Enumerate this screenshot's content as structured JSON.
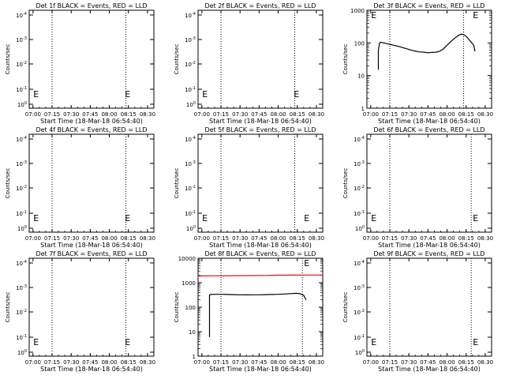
{
  "start_time_label": "Start Time (18-Mar-18 06:54:40)",
  "ylabel": "Counts/sec",
  "time_ticks": [
    "07:00",
    "07:15",
    "07:30",
    "07:45",
    "08:00",
    "08:15",
    "08:30"
  ],
  "colors": {
    "events": "#000000",
    "lld": "#ff0000"
  },
  "marker_labels": {
    "start": "E",
    "end": "E"
  },
  "chart_data": [
    {
      "type": "line",
      "title": "Det 1f BLACK = Events, RED = LLD",
      "x_unit": "minutes after 07:00",
      "xlim": [
        -3,
        95
      ],
      "xlabel": "Start Time (18-Mar-18 06:54:40)",
      "ylabel": "Counts/sec",
      "y_scale": "exponent",
      "y_ticks": [
        "10^-4",
        "10^-3",
        "10^-2",
        "10^-1",
        "10^0"
      ],
      "dotted_lines": [
        15,
        73,
        95
      ],
      "markers": [
        {
          "x": -1,
          "label": "E"
        },
        {
          "x": 71,
          "label": "E"
        }
      ],
      "series": []
    },
    {
      "type": "line",
      "title": "Det 2f BLACK = Events, RED = LLD",
      "x_unit": "minutes after 07:00",
      "xlim": [
        -3,
        95
      ],
      "xlabel": "Start Time (18-Mar-18 06:54:40)",
      "ylabel": "Counts/sec",
      "y_scale": "exponent",
      "y_ticks": [
        "10^-4",
        "10^-3",
        "10^-2",
        "10^-1",
        "10^0"
      ],
      "dotted_lines": [
        15,
        73,
        95
      ],
      "markers": [
        {
          "x": -1,
          "label": "E"
        },
        {
          "x": 71,
          "label": "E"
        }
      ],
      "series": []
    },
    {
      "type": "line",
      "title": "Det 3f BLACK = Events, RED = LLD",
      "x_unit": "minutes after 07:00",
      "xlim": [
        -3,
        95
      ],
      "xlabel": "Start Time (18-Mar-18 06:54:40)",
      "ylabel": "Counts/sec",
      "y_scale": "log",
      "ylim": [
        1,
        1000
      ],
      "y_ticks": [
        "1",
        "10",
        "100",
        "1000"
      ],
      "dotted_lines": [
        15,
        73,
        95
      ],
      "markers": [
        {
          "x": -1,
          "label": "E"
        },
        {
          "x": 79,
          "label": "E"
        }
      ],
      "series": [
        {
          "color": "#000000",
          "x": [
            6,
            6,
            7,
            8,
            10,
            14,
            18,
            22,
            26,
            30,
            34,
            38,
            42,
            45,
            48,
            51,
            54,
            57,
            60,
            63,
            66,
            69,
            71,
            73,
            75,
            77,
            79,
            81,
            82
          ],
          "y": [
            15,
            60,
            100,
            105,
            100,
            92,
            85,
            78,
            70,
            63,
            57,
            53,
            52,
            50,
            51,
            52,
            55,
            65,
            85,
            110,
            140,
            170,
            185,
            180,
            160,
            130,
            105,
            85,
            55
          ]
        }
      ]
    },
    {
      "type": "line",
      "title": "Det 4f BLACK = Events, RED = LLD",
      "x_unit": "minutes after 07:00",
      "xlim": [
        -3,
        95
      ],
      "xlabel": "Start Time (18-Mar-18 06:54:40)",
      "ylabel": "Counts/sec",
      "y_scale": "exponent",
      "y_ticks": [
        "10^-4",
        "10^-3",
        "10^-2",
        "10^-1",
        "10^0"
      ],
      "dotted_lines": [
        15,
        73,
        95
      ],
      "markers": [
        {
          "x": -1,
          "label": "E"
        },
        {
          "x": 71,
          "label": "E"
        }
      ],
      "series": []
    },
    {
      "type": "line",
      "title": "Det 5f BLACK = Events, RED = LLD",
      "x_unit": "minutes after 07:00",
      "xlim": [
        -3,
        95
      ],
      "xlabel": "Start Time (18-Mar-18 06:54:40)",
      "ylabel": "Counts/sec",
      "y_scale": "exponent",
      "y_ticks": [
        "10^-4",
        "10^-3",
        "10^-2",
        "10^-1",
        "10^0"
      ],
      "dotted_lines": [
        15,
        73,
        95
      ],
      "markers": [
        {
          "x": -1,
          "label": "E"
        },
        {
          "x": 79,
          "label": "E"
        }
      ],
      "series": []
    },
    {
      "type": "line",
      "title": "Det 6f BLACK = Events, RED = LLD",
      "x_unit": "minutes after 07:00",
      "xlim": [
        -3,
        95
      ],
      "xlabel": "Start Time (18-Mar-18 06:54:40)",
      "ylabel": "Counts/sec",
      "y_scale": "exponent",
      "y_ticks": [
        "10^-4",
        "10^-3",
        "10^-2",
        "10^-1",
        "10^0"
      ],
      "dotted_lines": [
        15,
        79,
        95
      ],
      "markers": [
        {
          "x": -1,
          "label": "E"
        },
        {
          "x": 79,
          "label": "E"
        }
      ],
      "series": []
    },
    {
      "type": "line",
      "title": "Det 7f BLACK = Events, RED = LLD",
      "x_unit": "minutes after 07:00",
      "xlim": [
        -3,
        95
      ],
      "xlabel": "Start Time (18-Mar-18 06:54:40)",
      "ylabel": "Counts/sec",
      "y_scale": "exponent",
      "y_ticks": [
        "10^-4",
        "10^-3",
        "10^-2",
        "10^-1",
        "10^0"
      ],
      "dotted_lines": [
        15,
        73,
        95
      ],
      "markers": [
        {
          "x": -1,
          "label": "E"
        },
        {
          "x": 71,
          "label": "E"
        }
      ],
      "series": []
    },
    {
      "type": "line",
      "title": "Det 8f BLACK = Events, RED = LLD",
      "x_unit": "minutes after 07:00",
      "xlim": [
        -3,
        95
      ],
      "xlabel": "Start Time (18-Mar-18 06:54:40)",
      "ylabel": "Counts/sec",
      "y_scale": "log",
      "ylim": [
        1,
        10000
      ],
      "y_ticks": [
        "1",
        "10",
        "100",
        "1000",
        "10000"
      ],
      "dotted_lines": [
        15,
        79,
        95
      ],
      "markers": [
        {
          "x": 79,
          "label": "E"
        }
      ],
      "series": [
        {
          "color": "#ff0000",
          "x": [
            -3,
            10,
            20,
            30,
            40,
            50,
            55,
            60,
            70,
            80,
            90,
            95
          ],
          "y": [
            1900,
            1920,
            1930,
            1950,
            1960,
            1980,
            2010,
            2020,
            2040,
            2050,
            2060,
            2060
          ]
        },
        {
          "color": "#000000",
          "x": [
            6,
            6,
            7,
            10,
            15,
            20,
            25,
            30,
            35,
            40,
            45,
            50,
            55,
            60,
            65,
            70,
            74,
            77,
            80,
            82
          ],
          "y": [
            6,
            320,
            330,
            335,
            335,
            330,
            325,
            320,
            318,
            320,
            322,
            325,
            330,
            335,
            345,
            360,
            370,
            355,
            310,
            200
          ]
        }
      ]
    },
    {
      "type": "line",
      "title": "Det 9f BLACK = Events, RED = LLD",
      "x_unit": "minutes after 07:00",
      "xlim": [
        -3,
        95
      ],
      "xlabel": "Start Time (18-Mar-18 06:54:40)",
      "ylabel": "Counts/sec",
      "y_scale": "exponent",
      "y_ticks": [
        "10^-4",
        "10^-3",
        "10^-2",
        "10^-1",
        "10^0"
      ],
      "dotted_lines": [
        15,
        79,
        95
      ],
      "markers": [
        {
          "x": -1,
          "label": "E"
        },
        {
          "x": 79,
          "label": "E"
        }
      ],
      "series": []
    }
  ]
}
